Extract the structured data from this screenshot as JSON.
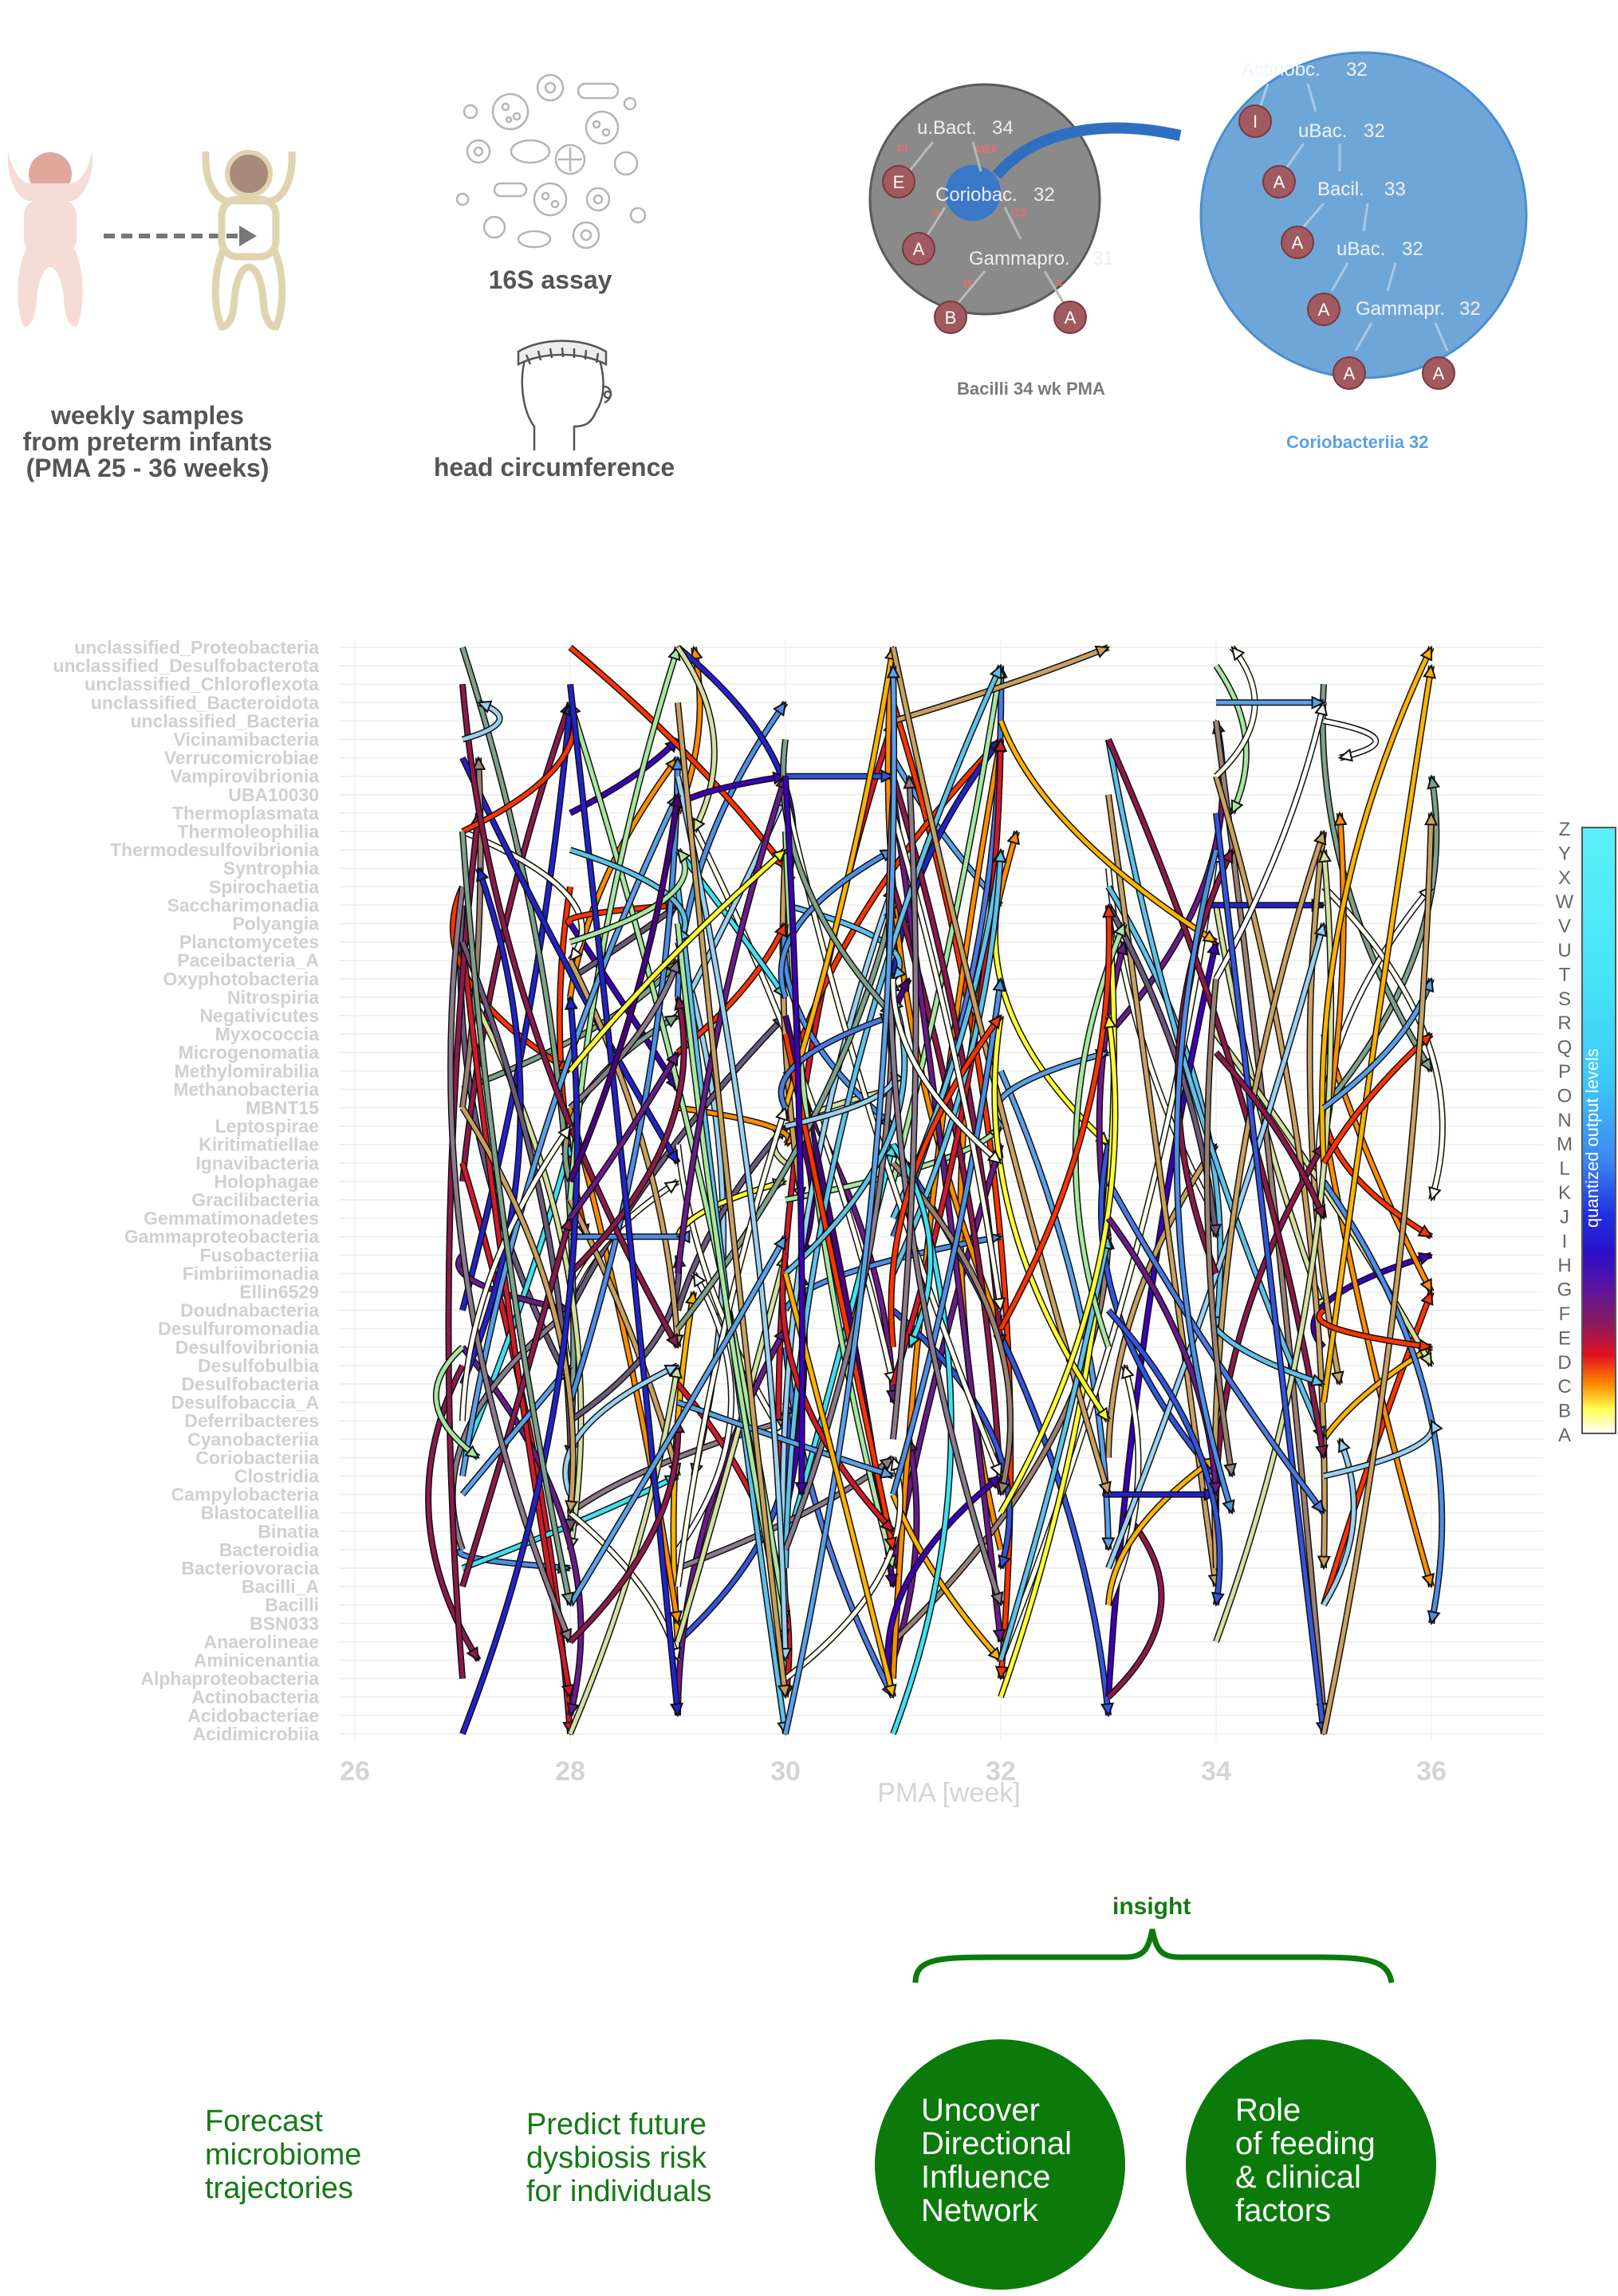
{
  "infants": {
    "caption_line1": "weekly samples",
    "caption_line2": "from preterm infants",
    "caption_line3": "(PMA 25 - 36 weeks)"
  },
  "assay": {
    "label_16s": "16S assay",
    "label_head": "head circumference"
  },
  "network": {
    "grey_caption": "Bacilli 34 wk PMA",
    "blue_caption": "Coriobacteriia 32",
    "grey_nodes": {
      "n1": "u.Bact.",
      "n1v": "34",
      "n2": "Coriobac.",
      "n2v": "32",
      "n3": "Gammapro.",
      "n3v": "31",
      "tag_fi": "FI",
      "tag_abx": "ABX",
      "tag_a": "A",
      "tag_cz": "CZ",
      "tag_b": "B",
      "tag_a2": "A",
      "c_e": "E",
      "c_a": "A",
      "c_b": "B",
      "c_a2": "A"
    },
    "blue_nodes": {
      "n1": "Actinobc.",
      "n1v": "32",
      "n2": "uBac.",
      "n2v": "32",
      "n3": "Bacil.",
      "n3v": "33",
      "n4": "uBac.",
      "n4v": "32",
      "n5": "Gammapr.",
      "n5v": "32",
      "c_i": "I",
      "c_a1": "A",
      "c_a2": "A",
      "c_a3": "A",
      "c_a4": "A",
      "c_a5": "A"
    }
  },
  "chart": {
    "xlabel": "PMA [week]",
    "x_ticks": [
      "26",
      "28",
      "30",
      "32",
      "34",
      "36"
    ],
    "y_labels": [
      "unclassified_Proteobacteria",
      "unclassified_Desulfobacterota",
      "unclassified_Chloroflexota",
      "unclassified_Bacteroidota",
      "unclassified_Bacteria",
      "Vicinamibacteria",
      "Verrucomicrobiae",
      "Vampirovibrionia",
      "UBA10030",
      "Thermoplasmata",
      "Thermoleophilia",
      "Thermodesulfovibrionia",
      "Syntrophia",
      "Spirochaetia",
      "Saccharimonadia",
      "Polyangia",
      "Planctomycetes",
      "Paceibacteria_A",
      "Oxyphotobacteria",
      "Nitrospiria",
      "Negativicutes",
      "Myxococcia",
      "Microgenomatia",
      "Methylomirabilia",
      "Methanobacteria",
      "MBNT15",
      "Leptospirae",
      "Kiritimatiellae",
      "Ignavibacteria",
      "Holophagae",
      "Gracilibacteria",
      "Gemmatimonadetes",
      "Gammaproteobacteria",
      "Fusobacteriia",
      "Fimbriimonadia",
      "Ellin6529",
      "Doudnabacteria",
      "Desulfuromonadia",
      "Desulfovibrionia",
      "Desulfobulbia",
      "Desulfobacteria",
      "Desulfobaccia_A",
      "Deferribacteres",
      "Cyanobacteriia",
      "Coriobacteriia",
      "Clostridia",
      "Campylobacteria",
      "Blastocatellia",
      "Binatia",
      "Bacteroidia",
      "Bacteriovoracia",
      "Bacilli_A",
      "Bacilli",
      "BSN033",
      "Anaerolineae",
      "Aminicenantia",
      "Alphaproteobacteria",
      "Actinobacteria",
      "Acidobacteriae",
      "Acidimicrobiia"
    ],
    "legend_title": "quantized output levels",
    "legend_letters": [
      "Z",
      "Y",
      "X",
      "W",
      "V",
      "U",
      "T",
      "S",
      "R",
      "Q",
      "P",
      "O",
      "N",
      "M",
      "L",
      "K",
      "J",
      "I",
      "H",
      "G",
      "F",
      "E",
      "D",
      "C",
      "B",
      "A"
    ],
    "level_colors": [
      "#fffff0",
      "#ffff33",
      "#ff8c00",
      "#ff3300",
      "#d11a2a",
      "#8b1a4a",
      "#6a1b8a",
      "#4b0082",
      "#3d00b8",
      "#2222cc",
      "#3355dd",
      "#4a7ae0",
      "#4d8ee6",
      "#5aa0e8",
      "#6a5a7a",
      "#8a7a8a",
      "#9a8070",
      "#7fa08a",
      "#a8e6a0",
      "#d4e0a0",
      "#c8a060",
      "#ffb300",
      "#ffffff",
      "#40e0f0",
      "#5fc0e8",
      "#9ad0f0"
    ]
  },
  "bottom": {
    "insight": "insight",
    "forecast": [
      "Forecast",
      "microbiome",
      "trajectories"
    ],
    "predict": [
      "Predict future",
      "dysbiosis risk",
      "for individuals"
    ],
    "uncover": [
      "Uncover",
      "Directional",
      "Influence",
      "Network"
    ],
    "role": [
      "Role",
      "of feeding",
      "& clinical",
      "factors"
    ]
  },
  "colors": {
    "green": "#0b7a0b",
    "network_blue": "#6fa6d8",
    "network_grey": "#8a8a8a",
    "axis_grey": "#d6d6d6"
  }
}
